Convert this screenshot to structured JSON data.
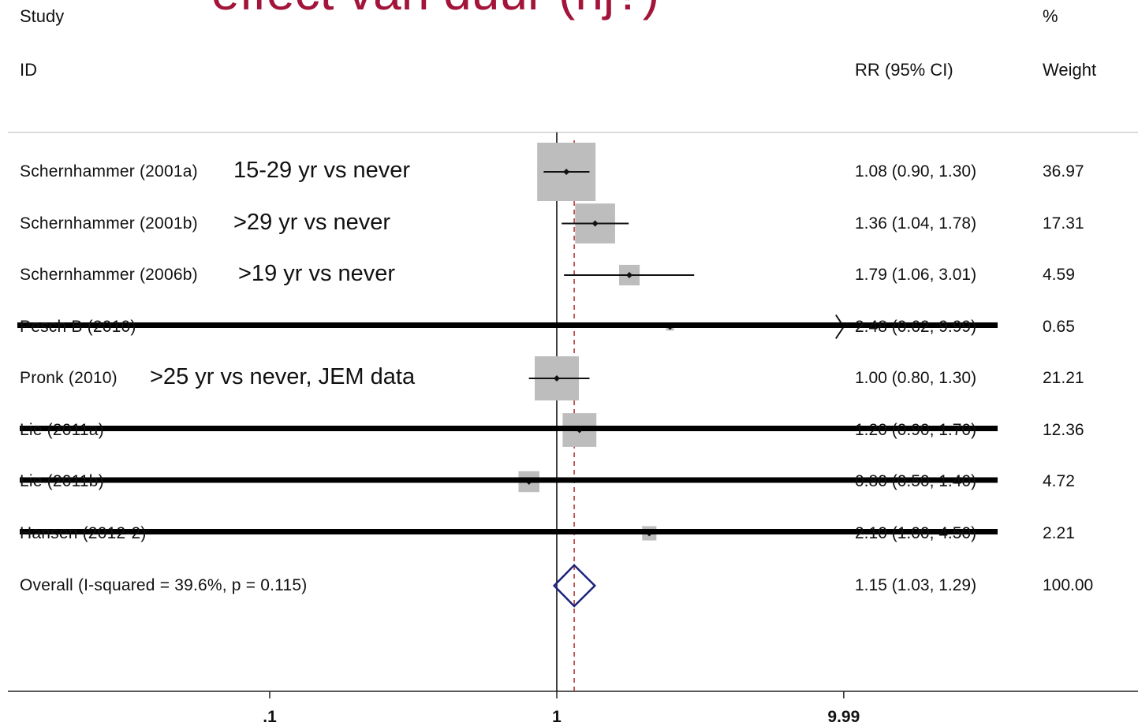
{
  "slide_title": "effect van duur (nj?)",
  "header": {
    "study": "Study",
    "id": "ID",
    "pct": "%",
    "rr": "RR (95% CI)",
    "weight": "Weight"
  },
  "colors": {
    "box": "#bdbdbd",
    "diamond": "#1a237e",
    "ref_line": "#000000",
    "overall_line": "#b03030",
    "title": "#a3143a",
    "strike": "#000000"
  },
  "chart_data": {
    "type": "forest",
    "scale": "log",
    "xlim": [
      0.1,
      10
    ],
    "x_ticks": [
      {
        "value": 0.1,
        "label": ".1"
      },
      {
        "value": 1,
        "label": "1"
      },
      {
        "value": 9.99,
        "label": "9.99"
      }
    ],
    "null_value": 1,
    "overall_value": 1.15,
    "studies": [
      {
        "name": "Schernhammer (2001a)",
        "annotation": "15-29 yr vs never",
        "rr": 1.08,
        "lo": 0.9,
        "hi": 1.3,
        "rr_text": "1.08 (0.90, 1.30)",
        "weight": 36.97,
        "weight_text": "36.97",
        "struck": false
      },
      {
        "name": "Schernhammer (2001b)",
        "annotation": ">29 yr vs never",
        "rr": 1.36,
        "lo": 1.04,
        "hi": 1.78,
        "rr_text": "1.36 (1.04, 1.78)",
        "weight": 17.31,
        "weight_text": "17.31",
        "struck": false
      },
      {
        "name": "Schernhammer (2006b)",
        "annotation": ">19 yr vs never",
        "rr": 1.79,
        "lo": 1.06,
        "hi": 3.01,
        "rr_text": "1.79 (1.06, 3.01)",
        "weight": 4.59,
        "weight_text": "4.59",
        "struck": false
      },
      {
        "name": "Pesch B (2010)",
        "annotation": "",
        "rr": 2.48,
        "lo": 0.62,
        "hi": 9.99,
        "rr_text": "2.48 (0.62, 9.99)",
        "weight": 0.65,
        "weight_text": "0.65",
        "struck": true
      },
      {
        "name": "Pronk (2010)",
        "annotation": ">25 yr vs never, JEM data",
        "rr": 1.0,
        "lo": 0.8,
        "hi": 1.3,
        "rr_text": "1.00 (0.80, 1.30)",
        "weight": 21.21,
        "weight_text": "21.21",
        "struck": false
      },
      {
        "name": "Lie (2011a)",
        "annotation": "",
        "rr": 1.2,
        "lo": 0.9,
        "hi": 1.7,
        "rr_text": "1.20 (0.90, 1.70)",
        "weight": 12.36,
        "weight_text": "12.36",
        "struck": true
      },
      {
        "name": "Lie (2011b)",
        "annotation": "",
        "rr": 0.8,
        "lo": 0.5,
        "hi": 1.4,
        "rr_text": "0.80 (0.50, 1.40)",
        "weight": 4.72,
        "weight_text": "4.72",
        "struck": true
      },
      {
        "name": "Hansen (2012-2)",
        "annotation": "",
        "rr": 2.1,
        "lo": 1.0,
        "hi": 4.5,
        "rr_text": "2.10 (1.00, 4.50)",
        "weight": 2.21,
        "weight_text": "2.21",
        "struck": true
      }
    ],
    "overall": {
      "name": "Overall",
      "stats": "(I-squared = 39.6%, p = 0.115)",
      "rr": 1.15,
      "lo": 1.03,
      "hi": 1.29,
      "rr_text": "1.15 (1.03, 1.29)",
      "weight_text": "100.00"
    }
  }
}
